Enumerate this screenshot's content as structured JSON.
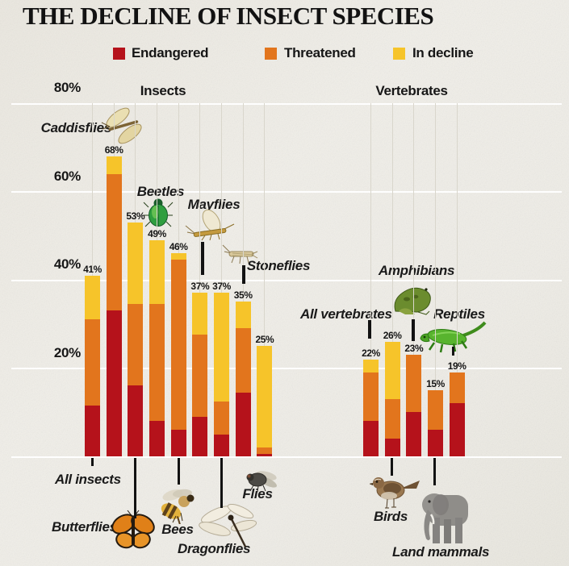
{
  "title": "THE DECLINE OF INSECT SPECIES",
  "legend": [
    {
      "label": "Endangered",
      "color": "#b5121b"
    },
    {
      "label": "Threatened",
      "color": "#e2751d"
    },
    {
      "label": "In decline",
      "color": "#f6c42a"
    }
  ],
  "axis": {
    "ticks": [
      "80%",
      "60%",
      "40%",
      "20%"
    ],
    "unit": "%",
    "max": 80
  },
  "chart_data": {
    "type": "bar",
    "stacked": true,
    "series_names": [
      "Endangered",
      "Threatened",
      "In decline"
    ],
    "ylim": [
      0,
      80
    ],
    "unit": "percent of species",
    "grid": true,
    "groups": [
      {
        "label": "Insects",
        "bars": [
          {
            "name": "All insects",
            "total": 41,
            "value_label": "41%",
            "segments": [
              11.5,
              19.5,
              10
            ]
          },
          {
            "name": "Caddisflies",
            "total": 68,
            "value_label": "68%",
            "segments": [
              33,
              31,
              4
            ]
          },
          {
            "name": "Butterflies",
            "total": 53,
            "value_label": "53%",
            "segments": [
              16,
              18.5,
              18.5
            ]
          },
          {
            "name": "Beetles",
            "total": 49,
            "value_label": "49%",
            "segments": [
              8,
              26.5,
              14.5
            ]
          },
          {
            "name": "Bees",
            "total": 46,
            "value_label": "46%",
            "segments": [
              6,
              38.5,
              1.5
            ]
          },
          {
            "name": "Mayflies",
            "total": 37,
            "value_label": "37%",
            "segments": [
              9,
              18.5,
              9.5
            ]
          },
          {
            "name": "Dragonflies",
            "total": 37,
            "value_label": "37%",
            "segments": [
              5,
              7.5,
              24.5
            ]
          },
          {
            "name": "Stoneflies",
            "total": 35,
            "value_label": "35%",
            "segments": [
              14.5,
              14.5,
              6
            ]
          },
          {
            "name": "Flies",
            "total": 25,
            "value_label": "25%",
            "segments": [
              0.5,
              1.5,
              23
            ]
          }
        ]
      },
      {
        "label": "Vertebrates",
        "bars": [
          {
            "name": "All vertebrates",
            "total": 22,
            "value_label": "22%",
            "segments": [
              8,
              11,
              3
            ]
          },
          {
            "name": "Birds",
            "total": 26,
            "value_label": "26%",
            "segments": [
              4,
              9,
              13
            ]
          },
          {
            "name": "Amphibians",
            "total": 23,
            "value_label": "23%",
            "segments": [
              10,
              13,
              0
            ]
          },
          {
            "name": "Land mammals",
            "total": 15,
            "value_label": "15%",
            "segments": [
              6,
              9,
              0
            ]
          },
          {
            "name": "Reptiles",
            "total": 19,
            "value_label": "19%",
            "segments": [
              12,
              7,
              0
            ]
          }
        ]
      }
    ]
  }
}
